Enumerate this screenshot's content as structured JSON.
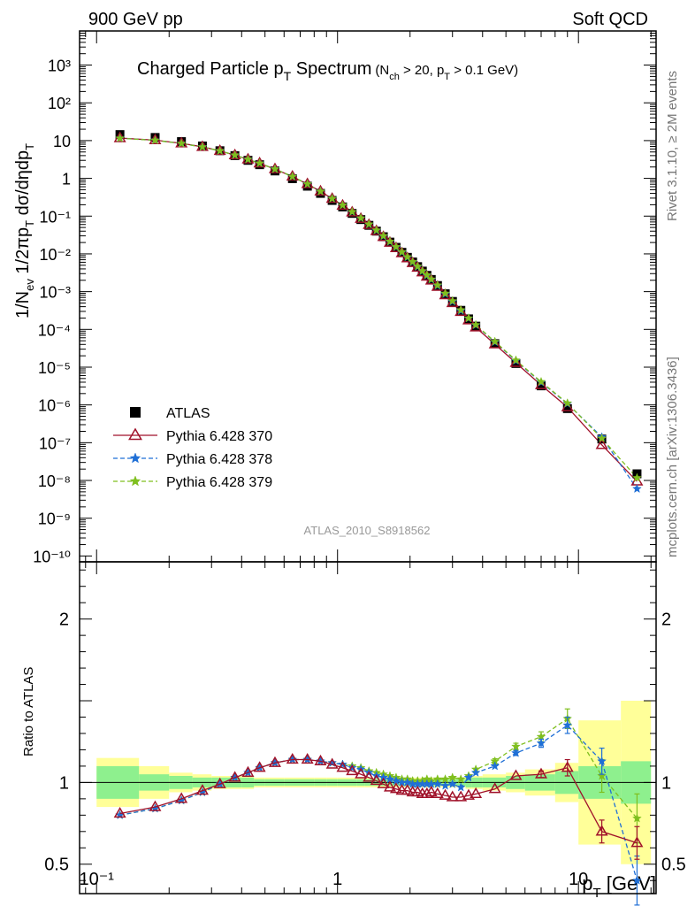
{
  "header": {
    "left": "900 GeV pp",
    "right": "Soft QCD"
  },
  "title": {
    "main": "Charged Particle p",
    "main_sub": "T",
    "main_tail": " Spectrum",
    "cond1": "(N",
    "cond1_sub": "ch",
    "cond2": " > 20, p",
    "cond2_sub": "T",
    "cond3": " > 0.1 GeV)"
  },
  "side": {
    "rivet": "Rivet 3.1.10, ≥ 2M events",
    "mcplots": "mcplots.cern.ch [arXiv:1306.3436]"
  },
  "analysis_label": "ATLAS_2010_S8918562",
  "top_ylabel": {
    "p1": "1/N",
    "p1_sub": "ev",
    "p2": " 1/2πp",
    "p2_sub": "T",
    "p3": " dσ/dηdp",
    "p3_sub": "T"
  },
  "ratio_ylabel": "Ratio to ATLAS",
  "xlabel": {
    "p": "p",
    "sub": "T",
    "unit": " [GeV]"
  },
  "chart_data": {
    "type": "scatter",
    "x_scale": "log",
    "y_scale_top": "log",
    "xlim": [
      0.085,
      21
    ],
    "ylim_top": [
      7e-11,
      8000
    ],
    "ylim_ratio": [
      0.32,
      2.35
    ],
    "x_ticks": [
      {
        "value": 0.1,
        "label": "10⁻¹"
      },
      {
        "value": 1,
        "label": "1"
      },
      {
        "value": 10,
        "label": "10"
      }
    ],
    "top_y_ticks": [
      {
        "value": 1000,
        "label": "10³"
      },
      {
        "value": 100,
        "label": "10²"
      },
      {
        "value": 10,
        "label": "10"
      },
      {
        "value": 1,
        "label": "1"
      },
      {
        "value": 0.1,
        "label": "10⁻¹"
      },
      {
        "value": 0.01,
        "label": "10⁻²"
      },
      {
        "value": 0.001,
        "label": "10⁻³"
      },
      {
        "value": 0.0001,
        "label": "10⁻⁴"
      },
      {
        "value": 1e-05,
        "label": "10⁻⁵"
      },
      {
        "value": 1e-06,
        "label": "10⁻⁶"
      },
      {
        "value": 1e-07,
        "label": "10⁻⁷"
      },
      {
        "value": 1e-08,
        "label": "10⁻⁸"
      },
      {
        "value": 1e-09,
        "label": "10⁻⁹"
      },
      {
        "value": 1e-10,
        "label": "10⁻¹⁰"
      }
    ],
    "ratio_y_ticks": [
      {
        "value": 2,
        "label": "2"
      },
      {
        "value": 1,
        "label": "1"
      },
      {
        "value": 0.5,
        "label": "0.5"
      }
    ],
    "x": [
      0.125,
      0.175,
      0.225,
      0.275,
      0.325,
      0.375,
      0.425,
      0.475,
      0.55,
      0.65,
      0.75,
      0.85,
      0.95,
      1.05,
      1.15,
      1.25,
      1.35,
      1.45,
      1.55,
      1.65,
      1.75,
      1.85,
      1.95,
      2.05,
      2.15,
      2.25,
      2.35,
      2.45,
      2.6,
      2.8,
      3.0,
      3.25,
      3.5,
      3.75,
      4.5,
      5.5,
      7.0,
      9.0,
      12.5,
      17.5
    ],
    "bin_edges": [
      0.1,
      0.15,
      0.2,
      0.25,
      0.3,
      0.35,
      0.4,
      0.45,
      0.5,
      0.6,
      0.7,
      0.8,
      0.9,
      1.0,
      1.1,
      1.2,
      1.3,
      1.4,
      1.5,
      1.6,
      1.7,
      1.8,
      1.9,
      2.0,
      2.1,
      2.2,
      2.3,
      2.4,
      2.5,
      2.7,
      2.9,
      3.1,
      3.4,
      3.6,
      4.0,
      5.0,
      6.0,
      8.0,
      10.0,
      15.0,
      20.0
    ],
    "data": {
      "name": "ATLAS",
      "values": [
        14.4,
        12.1,
        9.4,
        7.2,
        5.4,
        4.0,
        3.0,
        2.3,
        1.57,
        0.98,
        0.62,
        0.4,
        0.26,
        0.175,
        0.118,
        0.081,
        0.057,
        0.04,
        0.0285,
        0.0205,
        0.0149,
        0.011,
        0.0081,
        0.0061,
        0.0046,
        0.0035,
        0.0027,
        0.0021,
        0.00145,
        0.00088,
        0.00055,
        0.00032,
        0.00019,
        0.000122,
        4.2e-05,
        1.25e-05,
        3.2e-06,
        8e-07,
        1.25e-07,
        1.5e-08
      ],
      "band_stat": [
        0.1,
        0.05,
        0.04,
        0.03,
        0.03,
        0.03,
        0.03,
        0.02,
        0.02,
        0.02,
        0.02,
        0.02,
        0.02,
        0.02,
        0.02,
        0.02,
        0.02,
        0.02,
        0.02,
        0.02,
        0.02,
        0.02,
        0.02,
        0.02,
        0.02,
        0.02,
        0.02,
        0.02,
        0.02,
        0.02,
        0.02,
        0.02,
        0.03,
        0.03,
        0.03,
        0.04,
        0.05,
        0.07,
        0.1,
        0.13
      ],
      "band_total": [
        0.15,
        0.1,
        0.06,
        0.05,
        0.04,
        0.04,
        0.04,
        0.03,
        0.03,
        0.03,
        0.03,
        0.03,
        0.03,
        0.03,
        0.03,
        0.03,
        0.03,
        0.03,
        0.03,
        0.03,
        0.03,
        0.03,
        0.03,
        0.03,
        0.03,
        0.03,
        0.03,
        0.03,
        0.03,
        0.03,
        0.03,
        0.03,
        0.04,
        0.04,
        0.05,
        0.06,
        0.08,
        0.12,
        0.38,
        0.5
      ]
    },
    "series": [
      {
        "name": "Pythia 6.428 370",
        "marker": "triangle",
        "line": "solid",
        "color": "#a0122a",
        "ratio": [
          0.81,
          0.85,
          0.9,
          0.95,
          0.99,
          1.03,
          1.06,
          1.09,
          1.12,
          1.14,
          1.14,
          1.13,
          1.11,
          1.09,
          1.07,
          1.05,
          1.03,
          1.01,
          0.99,
          0.97,
          0.96,
          0.95,
          0.95,
          0.94,
          0.94,
          0.93,
          0.93,
          0.94,
          0.93,
          0.92,
          0.91,
          0.91,
          0.92,
          0.93,
          0.96,
          1.04,
          1.05,
          1.09,
          0.7,
          0.63
        ],
        "ratio_err": [
          0.005,
          0.005,
          0.005,
          0.005,
          0.005,
          0.005,
          0.005,
          0.005,
          0.005,
          0.005,
          0.005,
          0.005,
          0.005,
          0.005,
          0.005,
          0.005,
          0.005,
          0.005,
          0.005,
          0.005,
          0.005,
          0.005,
          0.005,
          0.005,
          0.005,
          0.005,
          0.005,
          0.005,
          0.005,
          0.005,
          0.005,
          0.005,
          0.005,
          0.005,
          0.005,
          0.01,
          0.02,
          0.05,
          0.07,
          0.1
        ]
      },
      {
        "name": "Pythia 6.428 378",
        "marker": "star",
        "line": "dashed",
        "color": "#1f6fd6",
        "ratio": [
          0.8,
          0.84,
          0.89,
          0.94,
          0.99,
          1.03,
          1.06,
          1.09,
          1.12,
          1.14,
          1.14,
          1.13,
          1.12,
          1.11,
          1.09,
          1.08,
          1.06,
          1.04,
          1.03,
          1.02,
          1.01,
          1.0,
          1.0,
          0.99,
          0.99,
          0.99,
          0.99,
          0.99,
          0.99,
          0.98,
          0.99,
          0.97,
          1.03,
          1.06,
          1.1,
          1.18,
          1.24,
          1.35,
          1.13,
          0.4
        ],
        "ratio_err": [
          0.005,
          0.005,
          0.005,
          0.005,
          0.005,
          0.005,
          0.005,
          0.005,
          0.005,
          0.005,
          0.005,
          0.005,
          0.005,
          0.005,
          0.005,
          0.005,
          0.005,
          0.005,
          0.005,
          0.005,
          0.005,
          0.005,
          0.005,
          0.005,
          0.005,
          0.005,
          0.005,
          0.005,
          0.005,
          0.005,
          0.005,
          0.005,
          0.005,
          0.01,
          0.01,
          0.015,
          0.025,
          0.05,
          0.08,
          0.15
        ]
      },
      {
        "name": "Pythia 6.428 379",
        "marker": "star",
        "line": "dashed",
        "color": "#7fbf1e",
        "ratio": [
          0.8,
          0.84,
          0.89,
          0.94,
          0.99,
          1.03,
          1.06,
          1.09,
          1.12,
          1.14,
          1.14,
          1.13,
          1.12,
          1.11,
          1.1,
          1.09,
          1.07,
          1.06,
          1.05,
          1.04,
          1.03,
          1.02,
          1.02,
          1.01,
          1.01,
          1.01,
          1.02,
          1.01,
          1.02,
          1.02,
          1.03,
          1.02,
          1.04,
          1.08,
          1.13,
          1.22,
          1.28,
          1.39,
          1.04,
          0.78
        ],
        "ratio_err": [
          0.005,
          0.005,
          0.005,
          0.005,
          0.005,
          0.005,
          0.005,
          0.005,
          0.005,
          0.005,
          0.005,
          0.005,
          0.005,
          0.005,
          0.005,
          0.005,
          0.005,
          0.005,
          0.005,
          0.005,
          0.005,
          0.005,
          0.005,
          0.005,
          0.005,
          0.005,
          0.005,
          0.005,
          0.005,
          0.005,
          0.005,
          0.005,
          0.005,
          0.01,
          0.015,
          0.02,
          0.03,
          0.06,
          0.1,
          0.15
        ]
      }
    ],
    "legend_position": "bottom-left of top panel",
    "colors": {
      "band_stat": "#8ef08e",
      "band_total": "#ffff99",
      "data": "#000000"
    }
  }
}
